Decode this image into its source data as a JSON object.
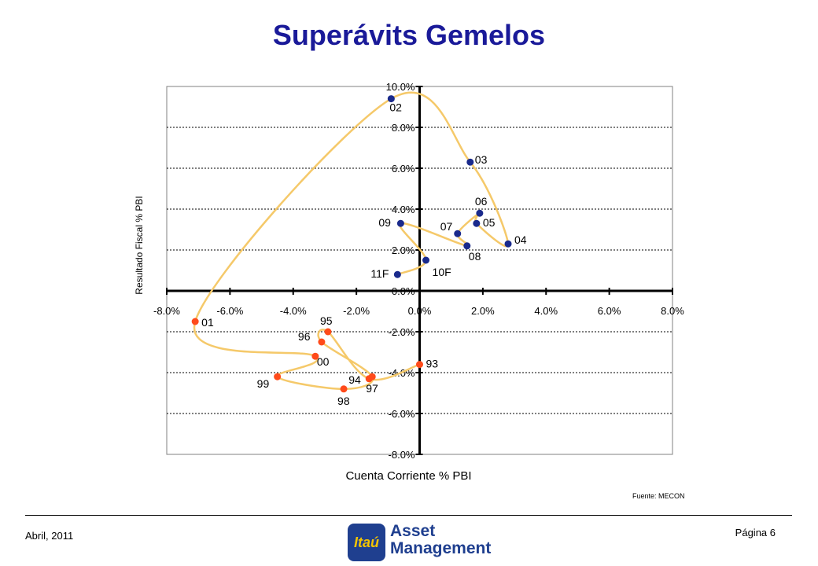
{
  "title": "Superávits Gemelos",
  "source": "Fuente: MECON",
  "footer": {
    "date": "Abril, 2011",
    "page": "Página 6"
  },
  "logo": {
    "word": "Itaú",
    "line1": "Asset",
    "line2": "Management"
  },
  "colors": {
    "title": "#1a1a99",
    "line": "#f5c96a",
    "positive_marker": "#1a2a8c",
    "negative_marker": "#ff4a1a",
    "axis": "#000000",
    "grid": "#000000"
  },
  "chart_data": {
    "type": "scatter",
    "xlabel": "Cuenta Corriente % PBI",
    "ylabel": "Resultado Fiscal % PBI",
    "xlim": [
      -0.08,
      0.08
    ],
    "ylim": [
      -0.08,
      0.1
    ],
    "xticks": [
      "-8.0%",
      "-6.0%",
      "-4.0%",
      "-2.0%",
      "0.0%",
      "2.0%",
      "4.0%",
      "6.0%",
      "8.0%"
    ],
    "yticks": [
      "10.0%",
      "8.0%",
      "6.0%",
      "4.0%",
      "2.0%",
      "0.0%",
      "-2.0%",
      "-4.0%",
      "-6.0%",
      "-8.0%"
    ],
    "grid": "horizontal dashed",
    "points": [
      {
        "label": "93",
        "x": 0.0,
        "y": -0.036,
        "group": "negative"
      },
      {
        "label": "94",
        "x": -0.016,
        "y": -0.043,
        "group": "negative"
      },
      {
        "label": "95",
        "x": -0.029,
        "y": -0.02,
        "group": "negative"
      },
      {
        "label": "96",
        "x": -0.031,
        "y": -0.025,
        "group": "negative"
      },
      {
        "label": "97",
        "x": -0.015,
        "y": -0.042,
        "group": "negative"
      },
      {
        "label": "98",
        "x": -0.024,
        "y": -0.048,
        "group": "negative"
      },
      {
        "label": "99",
        "x": -0.045,
        "y": -0.042,
        "group": "negative"
      },
      {
        "label": "00",
        "x": -0.033,
        "y": -0.032,
        "group": "negative"
      },
      {
        "label": "01",
        "x": -0.071,
        "y": -0.015,
        "group": "negative"
      },
      {
        "label": "02",
        "x": -0.009,
        "y": 0.094,
        "group": "positive"
      },
      {
        "label": "03",
        "x": 0.016,
        "y": 0.063,
        "group": "positive"
      },
      {
        "label": "04",
        "x": 0.028,
        "y": 0.023,
        "group": "positive"
      },
      {
        "label": "05",
        "x": 0.018,
        "y": 0.033,
        "group": "positive"
      },
      {
        "label": "06",
        "x": 0.019,
        "y": 0.038,
        "group": "positive"
      },
      {
        "label": "07",
        "x": 0.012,
        "y": 0.028,
        "group": "positive"
      },
      {
        "label": "08",
        "x": 0.015,
        "y": 0.022,
        "group": "positive"
      },
      {
        "label": "09",
        "x": -0.006,
        "y": 0.033,
        "group": "positive"
      },
      {
        "label": "10F",
        "x": 0.002,
        "y": 0.015,
        "group": "positive"
      },
      {
        "label": "11F",
        "x": -0.007,
        "y": 0.008,
        "group": "positive"
      }
    ]
  }
}
